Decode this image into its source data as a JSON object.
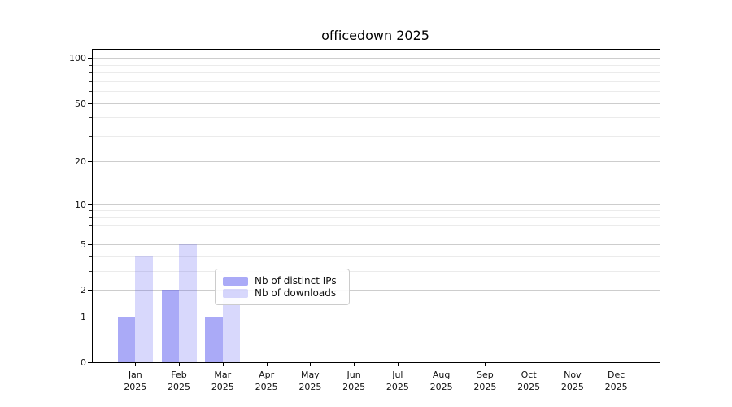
{
  "title": "officedown 2025",
  "legend": {
    "items": [
      {
        "label": "Nb of distinct IPs",
        "color": "rgba(85,85,240,0.50)"
      },
      {
        "label": "Nb of downloads",
        "color": "rgba(85,85,240,0.23)"
      }
    ],
    "position": "lower center"
  },
  "chart_data": {
    "type": "bar",
    "title": "officedown 2025",
    "categories": [
      "Jan",
      "Feb",
      "Mar",
      "Apr",
      "May",
      "Jun",
      "Jul",
      "Aug",
      "Sep",
      "Oct",
      "Nov",
      "Dec"
    ],
    "category_year": "2025",
    "series": [
      {
        "name": "Nb of distinct IPs",
        "color": "rgba(85,85,240,0.50)",
        "values": [
          1,
          2,
          1,
          0,
          0,
          0,
          0,
          0,
          0,
          0,
          0,
          0
        ]
      },
      {
        "name": "Nb of downloads",
        "color": "rgba(85,85,240,0.23)",
        "values": [
          4,
          5,
          2,
          0,
          0,
          0,
          0,
          0,
          0,
          0,
          0,
          0
        ]
      }
    ],
    "xlabel": "",
    "ylabel": "",
    "y_scale": "log1p",
    "ylim": [
      0,
      113.5
    ],
    "y_ticks": [
      0,
      1,
      2,
      5,
      10,
      20,
      50,
      100
    ],
    "y_minor_ticks": [
      3,
      4,
      6,
      7,
      8,
      9,
      30,
      40,
      60,
      70,
      80,
      90
    ],
    "grid": true,
    "legend_position": "lower center",
    "accent_color_hex": "#5555f0",
    "bar_fill_dark_hex": "#aaaaf7",
    "bar_fill_light_hex": "#d9d9f7"
  }
}
